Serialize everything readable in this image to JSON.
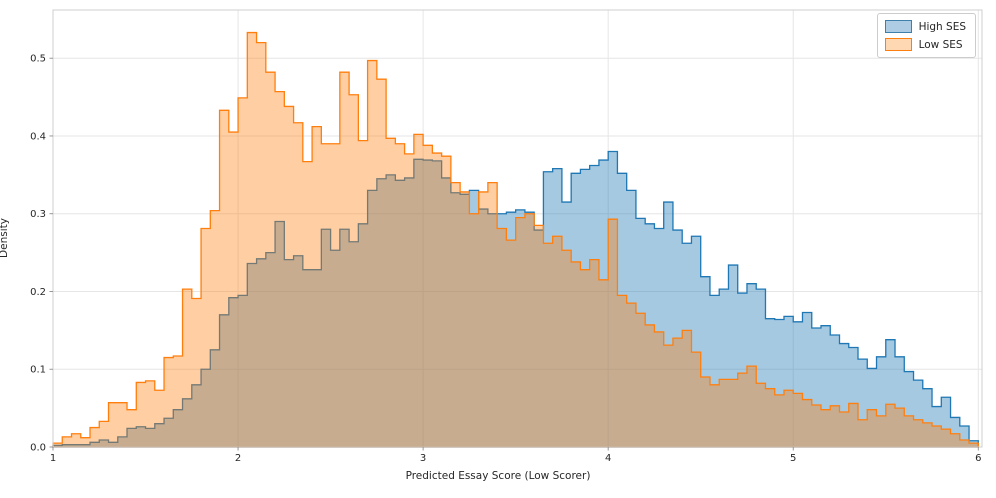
{
  "figure": {
    "xlabel": "Predicted Essay Score (Low Scorer)",
    "ylabel": "Density"
  },
  "legend": {
    "position": "upper right",
    "items": [
      {
        "label": "High SES",
        "swatch_fill": "#aecde5",
        "swatch_edge": "#3f7fac"
      },
      {
        "label": "Low SES",
        "swatch_fill": "#fdd8b2",
        "swatch_edge": "#ff7f0e"
      }
    ]
  },
  "chart_data": {
    "type": "bar",
    "subtype": "density-histogram-step",
    "title": "",
    "xlabel": "Predicted Essay Score (Low Scorer)",
    "ylabel": "Density",
    "grid": true,
    "background": "#ffffff",
    "gridline_color": "#e6e6e6",
    "spine_color": "#cfcfcf",
    "xlim": [
      1.0,
      6.02
    ],
    "ylim": [
      0.0,
      0.562
    ],
    "x_ticks": [
      "1",
      "2",
      "3",
      "4",
      "5",
      "6"
    ],
    "x_tick_values": [
      1,
      2,
      3,
      4,
      5,
      6
    ],
    "y_ticks": [
      "0.0",
      "0.1",
      "0.2",
      "0.3",
      "0.4",
      "0.5"
    ],
    "y_tick_values": [
      0.0,
      0.1,
      0.2,
      0.3,
      0.4,
      0.5
    ],
    "bin_start": 1.0,
    "bin_width": 0.05,
    "series": [
      {
        "name": "High SES",
        "edge_color": "#1f77b4",
        "fill_color": "rgba(31,119,180,0.40)",
        "values": [
          0.002,
          0.003,
          0.003,
          0.003,
          0.006,
          0.009,
          0.006,
          0.013,
          0.024,
          0.026,
          0.024,
          0.03,
          0.037,
          0.048,
          0.062,
          0.08,
          0.1,
          0.125,
          0.17,
          0.192,
          0.195,
          0.236,
          0.242,
          0.25,
          0.29,
          0.241,
          0.246,
          0.228,
          0.228,
          0.28,
          0.253,
          0.28,
          0.264,
          0.287,
          0.33,
          0.345,
          0.35,
          0.343,
          0.346,
          0.37,
          0.369,
          0.368,
          0.346,
          0.327,
          0.325,
          0.33,
          0.306,
          0.3,
          0.3,
          0.302,
          0.305,
          0.302,
          0.279,
          0.354,
          0.358,
          0.315,
          0.352,
          0.357,
          0.362,
          0.369,
          0.38,
          0.352,
          0.33,
          0.294,
          0.287,
          0.281,
          0.315,
          0.279,
          0.262,
          0.271,
          0.219,
          0.195,
          0.203,
          0.234,
          0.198,
          0.21,
          0.203,
          0.165,
          0.164,
          0.168,
          0.161,
          0.173,
          0.153,
          0.156,
          0.144,
          0.133,
          0.128,
          0.113,
          0.101,
          0.116,
          0.138,
          0.116,
          0.097,
          0.086,
          0.075,
          0.052,
          0.064,
          0.038,
          0.027,
          0.008
        ]
      },
      {
        "name": "Low SES",
        "edge_color": "#ff7f0e",
        "fill_color": "rgba(255,127,14,0.38)",
        "values": [
          0.005,
          0.013,
          0.017,
          0.012,
          0.025,
          0.033,
          0.057,
          0.057,
          0.048,
          0.083,
          0.085,
          0.073,
          0.115,
          0.117,
          0.203,
          0.191,
          0.281,
          0.304,
          0.433,
          0.405,
          0.449,
          0.533,
          0.52,
          0.482,
          0.457,
          0.438,
          0.417,
          0.367,
          0.412,
          0.39,
          0.39,
          0.482,
          0.453,
          0.394,
          0.497,
          0.473,
          0.397,
          0.39,
          0.377,
          0.402,
          0.388,
          0.378,
          0.374,
          0.34,
          0.328,
          0.3,
          0.328,
          0.34,
          0.281,
          0.266,
          0.295,
          0.3,
          0.285,
          0.262,
          0.271,
          0.253,
          0.238,
          0.228,
          0.241,
          0.215,
          0.293,
          0.195,
          0.185,
          0.172,
          0.157,
          0.148,
          0.131,
          0.14,
          0.15,
          0.122,
          0.09,
          0.08,
          0.087,
          0.087,
          0.095,
          0.104,
          0.082,
          0.075,
          0.067,
          0.073,
          0.069,
          0.061,
          0.054,
          0.048,
          0.053,
          0.045,
          0.056,
          0.035,
          0.048,
          0.04,
          0.055,
          0.05,
          0.04,
          0.035,
          0.031,
          0.027,
          0.023,
          0.017,
          0.009,
          0.005
        ]
      }
    ]
  }
}
